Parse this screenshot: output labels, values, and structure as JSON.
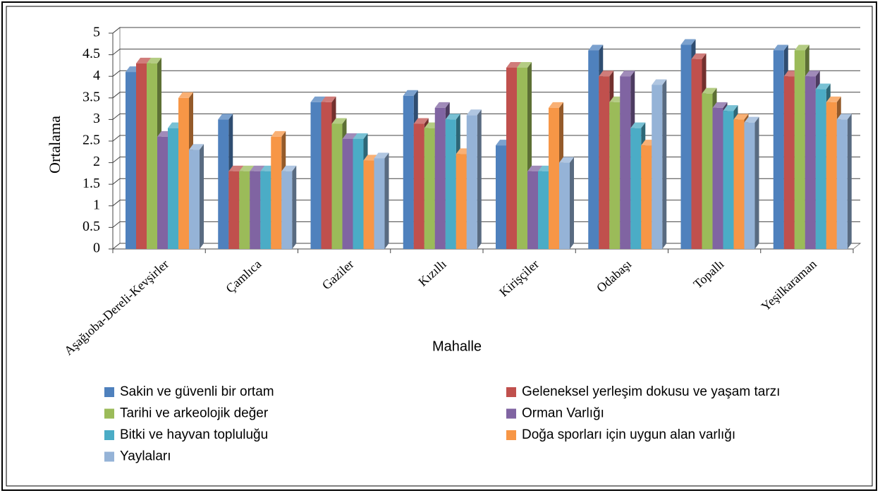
{
  "chart_data": {
    "type": "bar3d",
    "y_label": "Ortalama",
    "x_label": "Mahalle",
    "categories": [
      "Aşağıoba-Dereli-Kevşirler",
      "Çamlıca",
      "Gaziler",
      "Kızıllı",
      "Kirişçiler",
      "Odabaşı",
      "Topallı",
      "Yeşilkaraman"
    ],
    "series": [
      {
        "name": "Sakin ve güvenli bir ortam",
        "color": "#4F81BD",
        "values": [
          4.1,
          3.0,
          3.4,
          3.55,
          2.4,
          4.6,
          4.73,
          4.6
        ]
      },
      {
        "name": "Geleneksel yerleşim dokusu ve yaşam tarzı",
        "color": "#C0504D",
        "values": [
          4.3,
          1.8,
          3.4,
          2.9,
          4.2,
          4.0,
          4.4,
          4.0
        ]
      },
      {
        "name": "Tarihi ve arkeolojik değer",
        "color": "#9BBB59",
        "values": [
          4.3,
          1.8,
          2.9,
          2.8,
          4.2,
          3.4,
          3.6,
          4.6
        ]
      },
      {
        "name": "Orman Varlığı",
        "color": "#8064A2",
        "values": [
          2.6,
          1.8,
          2.55,
          3.27,
          1.8,
          4.0,
          3.27,
          4.0
        ]
      },
      {
        "name": "Bitki ve hayvan topluluğu",
        "color": "#4BACC6",
        "values": [
          2.8,
          1.8,
          2.55,
          3.0,
          1.8,
          2.8,
          3.2,
          3.7
        ]
      },
      {
        "name": "Doğa sporları için uygun alan varlığı",
        "color": "#F79646",
        "values": [
          3.5,
          2.6,
          2.05,
          2.2,
          3.27,
          2.4,
          3.0,
          3.4
        ]
      },
      {
        "name": "Yaylaları",
        "color": "#95B3D7",
        "values": [
          2.3,
          1.8,
          2.1,
          3.1,
          2.0,
          3.8,
          2.93,
          3.0
        ]
      }
    ],
    "ylim": [
      0,
      5
    ],
    "yticks": [
      0,
      0.5,
      1,
      1.5,
      2,
      2.5,
      3,
      3.5,
      4,
      4.5,
      5
    ],
    "grid": true
  }
}
